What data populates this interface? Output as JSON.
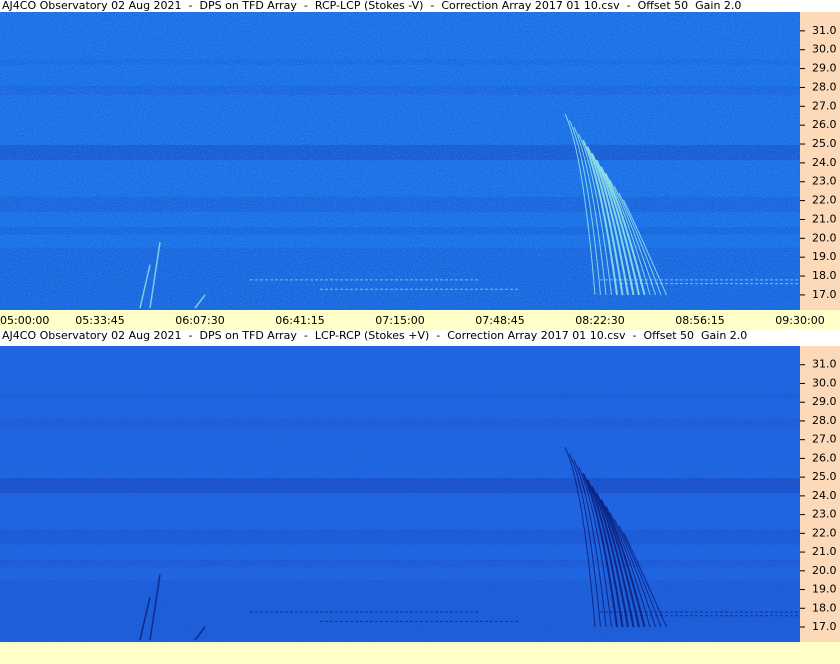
{
  "chart_data": [
    {
      "type": "spectrogram",
      "title": "AJ4CO Observatory 02 Aug 2021  -  DPS on TFD Array  -  RCP-LCP (Stokes -V)  -  Correction Array 2017 01 10.csv  -  Offset 50  Gain 2.0",
      "ylim": [
        16.2,
        32.0
      ],
      "yticks": [
        {
          "value": 17,
          "label": "17.0"
        },
        {
          "value": 18,
          "label": "18.0"
        },
        {
          "value": 19,
          "label": "19.0"
        },
        {
          "value": 20,
          "label": "20.0"
        },
        {
          "value": 21,
          "label": "21.0"
        },
        {
          "value": 22,
          "label": "22.0"
        },
        {
          "value": 23,
          "label": "23.0"
        },
        {
          "value": 24,
          "label": "24.0"
        },
        {
          "value": 25,
          "label": "25.0"
        },
        {
          "value": 26,
          "label": "26.0"
        },
        {
          "value": 27,
          "label": "27.0"
        },
        {
          "value": 28,
          "label": "28.0"
        },
        {
          "value": 29,
          "label": "29.0"
        },
        {
          "value": 30,
          "label": "30.0"
        },
        {
          "value": 31,
          "label": "31.0"
        }
      ],
      "x_labels": [
        "05:00:00",
        "05:33:45",
        "06:07:30",
        "06:41:15",
        "07:15:00",
        "07:48:45",
        "08:22:30",
        "08:56:15",
        "09:30:00"
      ]
    },
    {
      "type": "spectrogram",
      "title": "AJ4CO Observatory 02 Aug 2021  -  DPS on TFD Array  -  LCP-RCP (Stokes +V)  -  Correction Array 2017 01 10.csv  -  Offset 50  Gain 2.0",
      "ylim": [
        16.2,
        32.0
      ],
      "yticks": [
        {
          "value": 17,
          "label": "17.0"
        },
        {
          "value": 18,
          "label": "18.0"
        },
        {
          "value": 19,
          "label": "19.0"
        },
        {
          "value": 20,
          "label": "20.0"
        },
        {
          "value": 21,
          "label": "21.0"
        },
        {
          "value": 22,
          "label": "22.0"
        },
        {
          "value": 23,
          "label": "23.0"
        },
        {
          "value": 24,
          "label": "24.0"
        },
        {
          "value": 25,
          "label": "25.0"
        },
        {
          "value": 26,
          "label": "26.0"
        },
        {
          "value": 27,
          "label": "27.0"
        },
        {
          "value": 28,
          "label": "28.0"
        },
        {
          "value": 29,
          "label": "29.0"
        },
        {
          "value": 30,
          "label": "30.0"
        },
        {
          "value": 31,
          "label": "31.0"
        }
      ]
    }
  ]
}
